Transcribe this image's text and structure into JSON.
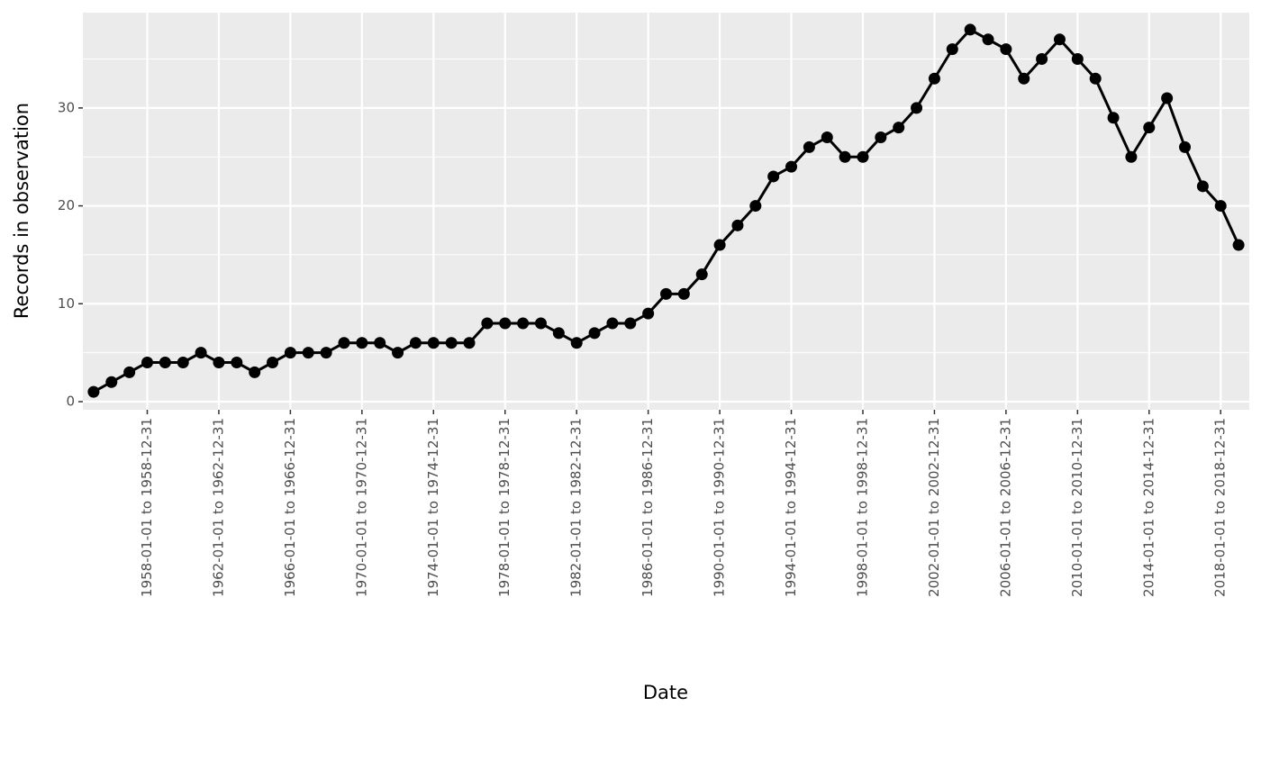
{
  "chart_data": {
    "type": "line",
    "x_label": "Date",
    "y_label": "Records in observation",
    "categories": [
      null,
      null,
      null,
      "1958-01-01 to 1958-12-31",
      null,
      null,
      null,
      "1962-01-01 to 1962-12-31",
      null,
      null,
      null,
      "1966-01-01 to 1966-12-31",
      null,
      null,
      null,
      "1970-01-01 to 1970-12-31",
      null,
      null,
      null,
      "1974-01-01 to 1974-12-31",
      null,
      null,
      null,
      "1978-01-01 to 1978-12-31",
      null,
      null,
      null,
      "1982-01-01 to 1982-12-31",
      null,
      null,
      null,
      "1986-01-01 to 1986-12-31",
      null,
      null,
      null,
      "1990-01-01 to 1990-12-31",
      null,
      null,
      null,
      "1994-01-01 to 1994-12-31",
      null,
      null,
      null,
      "1998-01-01 to 1998-12-31",
      null,
      null,
      null,
      "2002-01-01 to 2002-12-31",
      null,
      null,
      null,
      "2006-01-01 to 2006-12-31",
      null,
      null,
      null,
      "2010-01-01 to 2010-12-31",
      null,
      null,
      null,
      "2014-01-01 to 2014-12-31",
      null,
      null,
      null,
      "2018-01-01 to 2018-12-31",
      null
    ],
    "values": [
      1,
      2,
      3,
      4,
      4,
      4,
      5,
      4,
      4,
      3,
      4,
      5,
      5,
      5,
      6,
      6,
      6,
      5,
      6,
      6,
      6,
      6,
      8,
      8,
      8,
      8,
      7,
      6,
      7,
      8,
      8,
      9,
      11,
      11,
      13,
      16,
      18,
      20,
      23,
      24,
      26,
      27,
      25,
      25,
      27,
      28,
      30,
      33,
      36,
      38,
      37,
      36,
      33,
      35,
      37,
      35,
      33,
      29,
      25,
      28,
      31,
      26,
      22,
      20,
      16
    ],
    "color": "#000000",
    "ylim": [
      -0.83,
      39.74
    ],
    "yticks": [
      0,
      10,
      20,
      30
    ],
    "grid": true,
    "minor_grid": true
  }
}
